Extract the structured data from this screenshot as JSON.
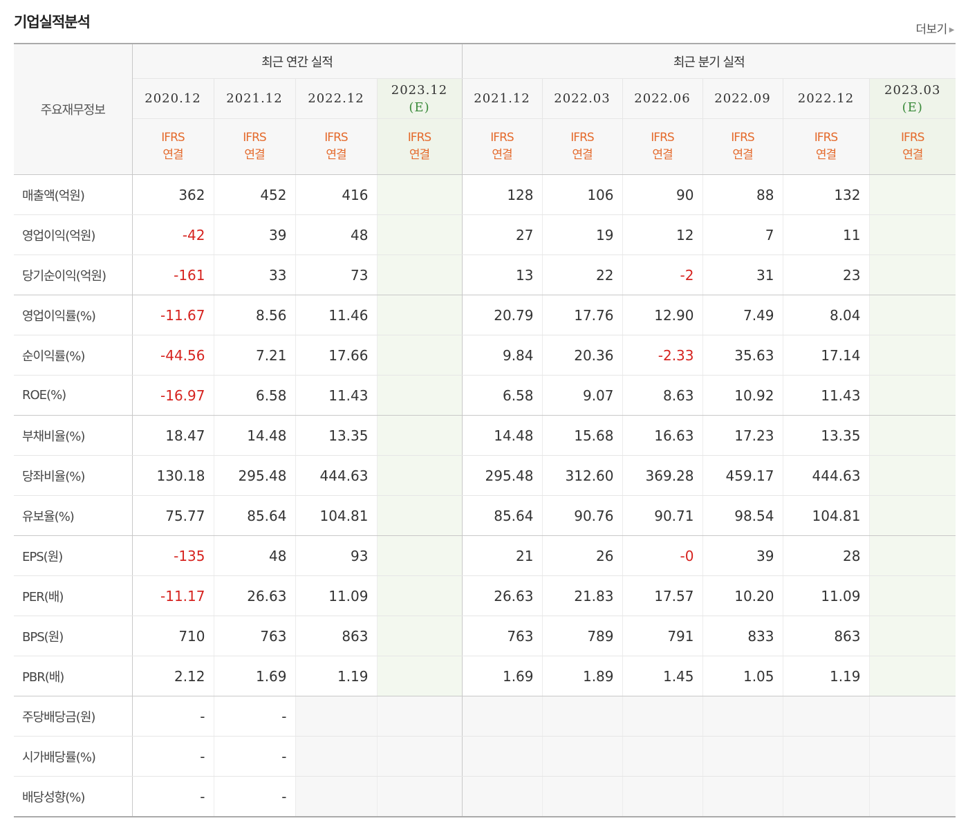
{
  "title": "기업실적분석",
  "more_label": "더보기",
  "header": {
    "label": "주요재무정보",
    "annual_group": "최근 연간 실적",
    "quarter_group": "최근 분기 실적",
    "annual_periods": [
      {
        "date": "2020.12",
        "est": "",
        "basis": "IFRS\n연결"
      },
      {
        "date": "2021.12",
        "est": "",
        "basis": "IFRS\n연결"
      },
      {
        "date": "2022.12",
        "est": "",
        "basis": "IFRS\n연결"
      },
      {
        "date": "2023.12",
        "est": "(E)",
        "basis": "IFRS\n연결"
      }
    ],
    "quarter_periods": [
      {
        "date": "2021.12",
        "est": "",
        "basis": "IFRS\n연결"
      },
      {
        "date": "2022.03",
        "est": "",
        "basis": "IFRS\n연결"
      },
      {
        "date": "2022.06",
        "est": "",
        "basis": "IFRS\n연결"
      },
      {
        "date": "2022.09",
        "est": "",
        "basis": "IFRS\n연결"
      },
      {
        "date": "2022.12",
        "est": "",
        "basis": "IFRS\n연결"
      },
      {
        "date": "2023.03",
        "est": "(E)",
        "basis": "IFRS\n연결"
      }
    ]
  },
  "rows": [
    {
      "label": "매출액(억원)",
      "annual": [
        "362",
        "452",
        "416",
        ""
      ],
      "quarter": [
        "128",
        "106",
        "90",
        "88",
        "132",
        ""
      ]
    },
    {
      "label": "영업이익(억원)",
      "annual": [
        "-42",
        "39",
        "48",
        ""
      ],
      "quarter": [
        "27",
        "19",
        "12",
        "7",
        "11",
        ""
      ]
    },
    {
      "label": "당기순이익(억원)",
      "annual": [
        "-161",
        "33",
        "73",
        ""
      ],
      "quarter": [
        "13",
        "22",
        "-2",
        "31",
        "23",
        ""
      ],
      "group_end": true
    },
    {
      "label": "영업이익률(%)",
      "annual": [
        "-11.67",
        "8.56",
        "11.46",
        ""
      ],
      "quarter": [
        "20.79",
        "17.76",
        "12.90",
        "7.49",
        "8.04",
        ""
      ]
    },
    {
      "label": "순이익률(%)",
      "annual": [
        "-44.56",
        "7.21",
        "17.66",
        ""
      ],
      "quarter": [
        "9.84",
        "20.36",
        "-2.33",
        "35.63",
        "17.14",
        ""
      ]
    },
    {
      "label": "ROE(%)",
      "annual": [
        "-16.97",
        "6.58",
        "11.43",
        ""
      ],
      "quarter": [
        "6.58",
        "9.07",
        "8.63",
        "10.92",
        "11.43",
        ""
      ],
      "group_end": true
    },
    {
      "label": "부채비율(%)",
      "annual": [
        "18.47",
        "14.48",
        "13.35",
        ""
      ],
      "quarter": [
        "14.48",
        "15.68",
        "16.63",
        "17.23",
        "13.35",
        ""
      ]
    },
    {
      "label": "당좌비율(%)",
      "annual": [
        "130.18",
        "295.48",
        "444.63",
        ""
      ],
      "quarter": [
        "295.48",
        "312.60",
        "369.28",
        "459.17",
        "444.63",
        ""
      ]
    },
    {
      "label": "유보율(%)",
      "annual": [
        "75.77",
        "85.64",
        "104.81",
        ""
      ],
      "quarter": [
        "85.64",
        "90.76",
        "90.71",
        "98.54",
        "104.81",
        ""
      ],
      "group_end": true
    },
    {
      "label": "EPS(원)",
      "annual": [
        "-135",
        "48",
        "93",
        ""
      ],
      "quarter": [
        "21",
        "26",
        "-0",
        "39",
        "28",
        ""
      ]
    },
    {
      "label": "PER(배)",
      "annual": [
        "-11.17",
        "26.63",
        "11.09",
        ""
      ],
      "quarter": [
        "26.63",
        "21.83",
        "17.57",
        "10.20",
        "11.09",
        ""
      ]
    },
    {
      "label": "BPS(원)",
      "annual": [
        "710",
        "763",
        "863",
        ""
      ],
      "quarter": [
        "763",
        "789",
        "791",
        "833",
        "863",
        ""
      ]
    },
    {
      "label": "PBR(배)",
      "annual": [
        "2.12",
        "1.69",
        "1.19",
        ""
      ],
      "quarter": [
        "1.69",
        "1.89",
        "1.45",
        "1.05",
        "1.19",
        ""
      ],
      "group_end": true
    },
    {
      "label": "주당배당금(원)",
      "annual": [
        "-",
        "-",
        null,
        null
      ],
      "quarter": [
        null,
        null,
        null,
        null,
        null,
        null
      ]
    },
    {
      "label": "시가배당률(%)",
      "annual": [
        "-",
        "-",
        null,
        null
      ],
      "quarter": [
        null,
        null,
        null,
        null,
        null,
        null
      ]
    },
    {
      "label": "배당성향(%)",
      "annual": [
        "-",
        "-",
        null,
        null
      ],
      "quarter": [
        null,
        null,
        null,
        null,
        null,
        null
      ],
      "last": true
    }
  ]
}
